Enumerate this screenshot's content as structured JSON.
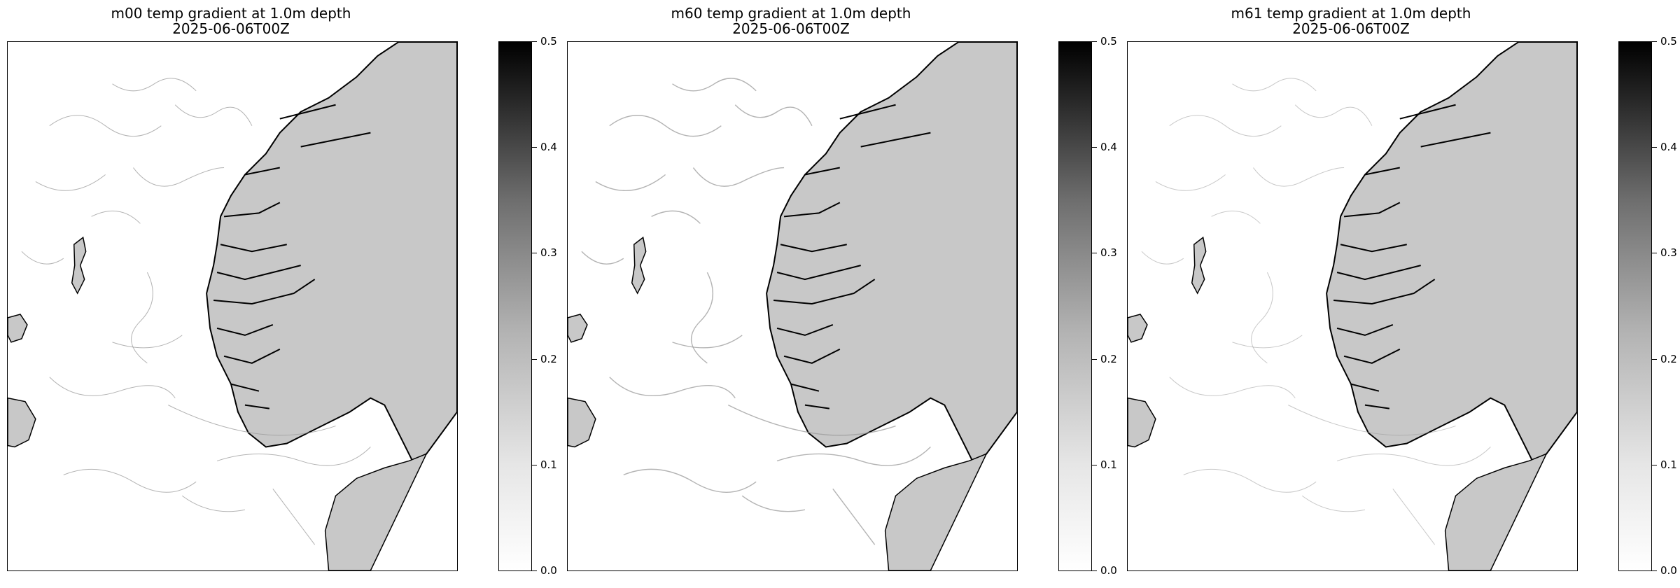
{
  "panels": [
    {
      "model": "m00",
      "title": "m00 temp gradient at 1.0m depth",
      "subtitle": "2025-06-06T00Z"
    },
    {
      "model": "m60",
      "title": "m60 temp gradient at 1.0m depth",
      "subtitle": "2025-06-06T00Z"
    },
    {
      "model": "m61",
      "title": "m61 temp gradient at 1.0m depth",
      "subtitle": "2025-06-06T00Z"
    }
  ],
  "colorbar": {
    "ticks": [
      "0.0",
      "0.1",
      "0.2",
      "0.3",
      "0.4",
      "0.5"
    ],
    "range": [
      0.0,
      0.5
    ],
    "colormap": "Greys"
  },
  "colors": {
    "land": "#c8c8c8",
    "coast": "#000000",
    "sea": "#ffffff",
    "gradient_mark": "#9a9a9a"
  }
}
